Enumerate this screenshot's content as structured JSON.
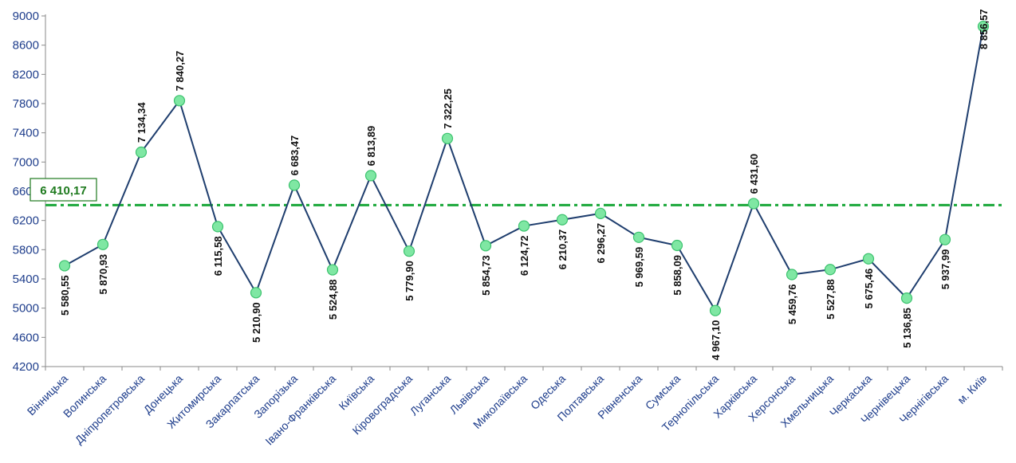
{
  "chart_data": {
    "type": "line",
    "categories": [
      "Вінницька",
      "Волинська",
      "Дніпропетровська",
      "Донецька",
      "Житомирська",
      "Закарпатська",
      "Запорізька",
      "Івано-Франківська",
      "Київська",
      "Кіровоградська",
      "Луганська",
      "Львівська",
      "Миколаївська",
      "Одеська",
      "Полтавська",
      "Рівненська",
      "Сумська",
      "Тернопільська",
      "Харківська",
      "Херсонська",
      "Хмельницька",
      "Черкаська",
      "Чернівецька",
      "Чернігівська",
      "м. Київ"
    ],
    "values": [
      5580.55,
      5870.93,
      7134.34,
      7840.27,
      6115.58,
      5210.9,
      6683.47,
      5524.88,
      6813.89,
      5779.9,
      7322.25,
      5854.73,
      6124.72,
      6210.37,
      6296.27,
      5969.59,
      5858.09,
      4967.1,
      6431.6,
      5459.76,
      5527.88,
      5675.46,
      5136.85,
      5937.99,
      8856.57
    ],
    "value_labels": [
      "5 580,55",
      "5 870,93",
      "7 134,34",
      "7 840,27",
      "6 115,58",
      "5 210,90",
      "6 683,47",
      "5 524,88",
      "6 813,89",
      "5 779,90",
      "7 322,25",
      "5 854,73",
      "6 124,72",
      "6 210,37",
      "6 296,27",
      "5 969,59",
      "5 858,09",
      "4 967,10",
      "6 431,60",
      "5 459,76",
      "5 527,88",
      "5 675,46",
      "5 136,85",
      "5 937,99",
      "8 856,57"
    ],
    "label_position": [
      "below",
      "below",
      "above",
      "above",
      "below",
      "below",
      "above",
      "below",
      "above",
      "below",
      "above",
      "below",
      "below",
      "below",
      "below",
      "below",
      "below",
      "below",
      "above",
      "below",
      "below",
      "below",
      "below",
      "below",
      "above"
    ],
    "yticks": [
      4200,
      4600,
      5000,
      5400,
      5800,
      6200,
      6600,
      7000,
      7400,
      7800,
      8200,
      8600,
      9000
    ],
    "ytick_labels": [
      "4200",
      "4600",
      "5000",
      "5400",
      "5800",
      "6200",
      "6600",
      "7000",
      "7400",
      "7800",
      "8200",
      "8600",
      "9000"
    ],
    "ylim": [
      4200,
      9000
    ],
    "average": {
      "value": 6410.17,
      "label": "6 410,17",
      "color": "#1aa83a"
    },
    "grid": false,
    "colors": {
      "line": "#1f3e6e",
      "marker_fill": "#7fe7a3",
      "marker_stroke": "#3cc26e",
      "axis": "#8a8a8a",
      "tick_text": "#1f3e8c"
    },
    "title": "",
    "xlabel": "",
    "ylabel": ""
  }
}
